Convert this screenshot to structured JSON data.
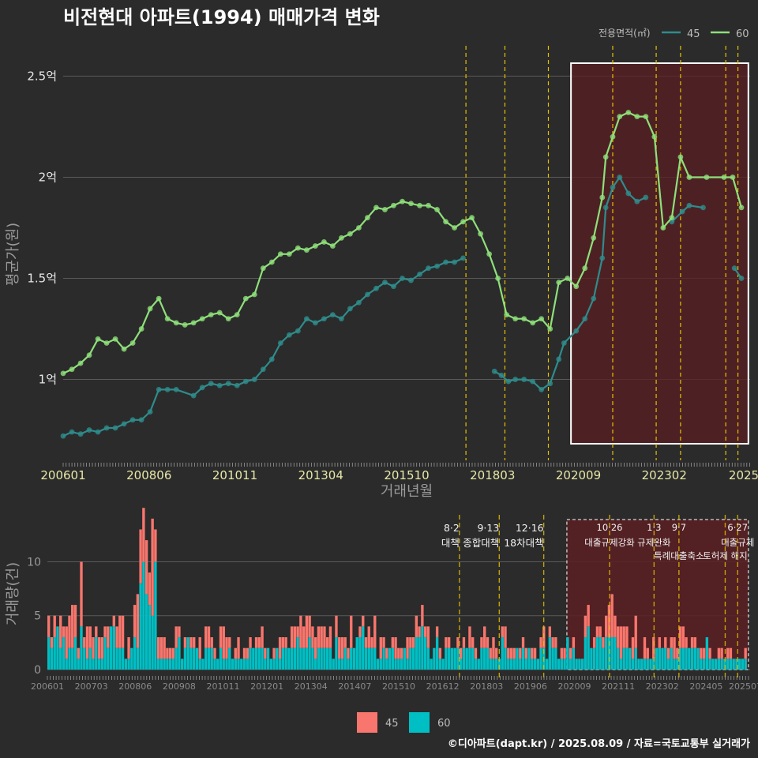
{
  "title": "비전현대 아파트(1994) 매매가격 변화",
  "credit": "©디아파트(dapt.kr) / 2025.08.09 / 자료=국토교통부 실거래가",
  "colors": {
    "background": "#2b2b2b",
    "series_45_line": "#2f8c8c",
    "series_60_line": "#8ee07a",
    "bar_45": "#f8766d",
    "bar_60": "#00bfc4",
    "highlight_fill": "#5a1f22",
    "policy_line": "#e6c000"
  },
  "chart_data": [
    {
      "type": "line",
      "title": "비전현대 아파트(1994) 매매가격 변화",
      "xlabel": "거래년월",
      "ylabel": "평균가(원)",
      "legend_title": "전용면적(㎡)",
      "legend_placement": "top-right",
      "grid": true,
      "x_tick_labels": [
        "200601",
        "200806",
        "201011",
        "201304",
        "201510",
        "201803",
        "202009",
        "202302",
        "2025"
      ],
      "y_tick_labels": [
        "1억",
        "1.5억",
        "2억",
        "2.5억"
      ],
      "y_ticks": [
        1.0,
        1.5,
        2.0,
        2.5
      ],
      "ylim": [
        0.6,
        2.65
      ],
      "x_unit": "fractional year",
      "xlim": [
        2006.0,
        2025.75
      ],
      "highlight_range": [
        2020.6,
        2025.7
      ],
      "policy_lines": [
        2017.58,
        2018.7,
        2019.95,
        2021.8,
        2023.05,
        2023.75,
        2025.05,
        2025.4
      ],
      "series": [
        {
          "name": "45",
          "points": [
            [
              2006.0,
              0.72
            ],
            [
              2006.25,
              0.74
            ],
            [
              2006.5,
              0.73
            ],
            [
              2006.75,
              0.75
            ],
            [
              2007.0,
              0.74
            ],
            [
              2007.25,
              0.76
            ],
            [
              2007.5,
              0.76
            ],
            [
              2007.75,
              0.78
            ],
            [
              2008.0,
              0.8
            ],
            [
              2008.25,
              0.8
            ],
            [
              2008.5,
              0.84
            ],
            [
              2008.75,
              0.95
            ],
            [
              2009.0,
              0.95
            ],
            [
              2009.25,
              0.95
            ],
            [
              2009.75,
              0.92
            ],
            [
              2010.0,
              0.96
            ],
            [
              2010.25,
              0.98
            ],
            [
              2010.5,
              0.97
            ],
            [
              2010.75,
              0.98
            ],
            [
              2011.0,
              0.97
            ],
            [
              2011.25,
              0.99
            ],
            [
              2011.5,
              1.0
            ],
            [
              2011.75,
              1.05
            ],
            [
              2012.0,
              1.1
            ],
            [
              2012.25,
              1.18
            ],
            [
              2012.5,
              1.22
            ],
            [
              2012.75,
              1.24
            ],
            [
              2013.0,
              1.3
            ],
            [
              2013.25,
              1.28
            ],
            [
              2013.5,
              1.3
            ],
            [
              2013.75,
              1.32
            ],
            [
              2014.0,
              1.3
            ],
            [
              2014.25,
              1.35
            ],
            [
              2014.5,
              1.38
            ],
            [
              2014.75,
              1.42
            ],
            [
              2015.0,
              1.45
            ],
            [
              2015.25,
              1.48
            ],
            [
              2015.5,
              1.46
            ],
            [
              2015.75,
              1.5
            ],
            [
              2016.0,
              1.49
            ],
            [
              2016.25,
              1.52
            ],
            [
              2016.5,
              1.55
            ],
            [
              2016.75,
              1.56
            ],
            [
              2017.0,
              1.58
            ],
            [
              2017.25,
              1.58
            ],
            [
              2017.5,
              1.6
            ],
            [
              2018.4,
              1.04
            ],
            [
              2018.6,
              1.02
            ],
            [
              2018.8,
              0.99
            ],
            [
              2019.0,
              1.0
            ],
            [
              2019.25,
              1.0
            ],
            [
              2019.5,
              0.99
            ],
            [
              2019.75,
              0.95
            ],
            [
              2020.0,
              0.98
            ],
            [
              2020.25,
              1.1
            ],
            [
              2020.4,
              1.18
            ],
            [
              2020.75,
              1.24
            ],
            [
              2021.0,
              1.3
            ],
            [
              2021.25,
              1.4
            ],
            [
              2021.5,
              1.6
            ],
            [
              2021.6,
              1.85
            ],
            [
              2021.8,
              1.95
            ],
            [
              2022.0,
              2.0
            ],
            [
              2022.25,
              1.92
            ],
            [
              2022.5,
              1.88
            ],
            [
              2022.75,
              1.9
            ],
            [
              2023.5,
              1.78
            ],
            [
              2023.8,
              1.83
            ],
            [
              2024.0,
              1.86
            ],
            [
              2024.4,
              1.85
            ],
            [
              2025.3,
              1.55
            ],
            [
              2025.5,
              1.5
            ]
          ]
        },
        {
          "name": "60",
          "points": [
            [
              2006.0,
              1.03
            ],
            [
              2006.25,
              1.05
            ],
            [
              2006.5,
              1.08
            ],
            [
              2006.75,
              1.12
            ],
            [
              2007.0,
              1.2
            ],
            [
              2007.25,
              1.18
            ],
            [
              2007.5,
              1.2
            ],
            [
              2007.75,
              1.15
            ],
            [
              2008.0,
              1.18
            ],
            [
              2008.25,
              1.25
            ],
            [
              2008.5,
              1.35
            ],
            [
              2008.75,
              1.4
            ],
            [
              2009.0,
              1.3
            ],
            [
              2009.25,
              1.28
            ],
            [
              2009.5,
              1.27
            ],
            [
              2009.75,
              1.28
            ],
            [
              2010.0,
              1.3
            ],
            [
              2010.25,
              1.32
            ],
            [
              2010.5,
              1.33
            ],
            [
              2010.75,
              1.3
            ],
            [
              2011.0,
              1.32
            ],
            [
              2011.25,
              1.4
            ],
            [
              2011.5,
              1.42
            ],
            [
              2011.75,
              1.55
            ],
            [
              2012.0,
              1.58
            ],
            [
              2012.25,
              1.62
            ],
            [
              2012.5,
              1.62
            ],
            [
              2012.75,
              1.65
            ],
            [
              2013.0,
              1.64
            ],
            [
              2013.25,
              1.66
            ],
            [
              2013.5,
              1.68
            ],
            [
              2013.75,
              1.66
            ],
            [
              2014.0,
              1.7
            ],
            [
              2014.25,
              1.72
            ],
            [
              2014.5,
              1.75
            ],
            [
              2014.75,
              1.8
            ],
            [
              2015.0,
              1.85
            ],
            [
              2015.25,
              1.84
            ],
            [
              2015.5,
              1.86
            ],
            [
              2015.75,
              1.88
            ],
            [
              2016.0,
              1.87
            ],
            [
              2016.25,
              1.86
            ],
            [
              2016.5,
              1.86
            ],
            [
              2016.75,
              1.84
            ],
            [
              2017.0,
              1.78
            ],
            [
              2017.25,
              1.75
            ],
            [
              2017.5,
              1.78
            ],
            [
              2017.75,
              1.8
            ],
            [
              2018.0,
              1.72
            ],
            [
              2018.25,
              1.62
            ],
            [
              2018.5,
              1.5
            ],
            [
              2018.75,
              1.32
            ],
            [
              2019.0,
              1.3
            ],
            [
              2019.25,
              1.3
            ],
            [
              2019.5,
              1.28
            ],
            [
              2019.75,
              1.3
            ],
            [
              2020.0,
              1.25
            ],
            [
              2020.25,
              1.48
            ],
            [
              2020.5,
              1.5
            ],
            [
              2020.75,
              1.46
            ],
            [
              2021.0,
              1.55
            ],
            [
              2021.25,
              1.7
            ],
            [
              2021.5,
              1.9
            ],
            [
              2021.6,
              2.1
            ],
            [
              2021.8,
              2.2
            ],
            [
              2022.0,
              2.3
            ],
            [
              2022.25,
              2.32
            ],
            [
              2022.5,
              2.3
            ],
            [
              2022.75,
              2.3
            ],
            [
              2023.0,
              2.2
            ],
            [
              2023.25,
              1.75
            ],
            [
              2023.5,
              1.8
            ],
            [
              2023.75,
              2.1
            ],
            [
              2024.0,
              2.0
            ],
            [
              2024.5,
              2.0
            ],
            [
              2025.0,
              2.0
            ],
            [
              2025.25,
              2.0
            ],
            [
              2025.5,
              1.85
            ]
          ]
        }
      ]
    },
    {
      "type": "bar",
      "stacked": true,
      "ylabel": "거래량(건)",
      "legend_placement": "bottom",
      "grid": true,
      "x_tick_labels": [
        "200601",
        "200703",
        "200806",
        "200908",
        "201011",
        "201201",
        "201304",
        "201407",
        "201510",
        "201612",
        "201803",
        "201906",
        "202009",
        "202111",
        "202302",
        "202405",
        "202507"
      ],
      "y_tick_labels": [
        "0",
        "5",
        "10"
      ],
      "y_ticks": [
        0,
        5,
        10
      ],
      "ylim": [
        0,
        14.5
      ],
      "x_unit": "fractional year",
      "xlim": [
        2006.0,
        2025.75
      ],
      "highlight_range": [
        2020.6,
        2025.7
      ],
      "policy_annotations": [
        {
          "x": 2017.58,
          "date": "8·2",
          "label": "대책"
        },
        {
          "x": 2018.7,
          "date": "9·13",
          "label": "종합대책"
        },
        {
          "x": 2019.95,
          "date": "12·16",
          "label": "18차대책"
        },
        {
          "x": 2021.8,
          "date": "10·26",
          "label": "대출규제강화"
        },
        {
          "x": 2023.05,
          "date": "1·3",
          "label": "규제완화"
        },
        {
          "x": 2023.75,
          "date": "9·7",
          "label": "특례대출축소"
        },
        {
          "x": 2025.05,
          "date": "",
          "label": "토허제 해지"
        },
        {
          "x": 2025.4,
          "date": "6·27",
          "label": "대출규제"
        }
      ],
      "series": [
        {
          "name": "45"
        },
        {
          "name": "60"
        }
      ],
      "values": {
        "x": [
          2006.0,
          2006.5,
          2007.0,
          2007.5,
          2008.0,
          2008.4,
          2008.5,
          2009.0,
          2009.5,
          2010.0,
          2010.5,
          2011.0,
          2011.5,
          2012.0,
          2012.5,
          2013.0,
          2013.5,
          2014.0,
          2014.5,
          2015.0,
          2015.5,
          2016.0,
          2016.5,
          2017.0,
          2017.5,
          2018.0,
          2018.5,
          2019.0,
          2019.5,
          2020.0,
          2020.5,
          2021.0,
          2021.25,
          2021.5,
          2021.75,
          2022.0,
          2022.5,
          2023.0,
          2023.5,
          2024.0,
          2024.5,
          2025.0,
          2025.5
        ],
        "v45": [
          4,
          5,
          3,
          4,
          3,
          4,
          10,
          2,
          2,
          2,
          3,
          2,
          2,
          3,
          2,
          3,
          2,
          3,
          2,
          3,
          2,
          2,
          2,
          1,
          2,
          2,
          2,
          1,
          2,
          1,
          1,
          3,
          6,
          5,
          4,
          3,
          2,
          1,
          2,
          2,
          1,
          1,
          1
        ],
        "v60": [
          3,
          3,
          2,
          3,
          2,
          3,
          9,
          1,
          2,
          2,
          2,
          2,
          2,
          2,
          2,
          2,
          2,
          2,
          3,
          2,
          2,
          3,
          2,
          2,
          2,
          2,
          2,
          2,
          2,
          2,
          2,
          3,
          4,
          3,
          3,
          2,
          1,
          2,
          2,
          2,
          1,
          1,
          0
        ]
      }
    }
  ]
}
